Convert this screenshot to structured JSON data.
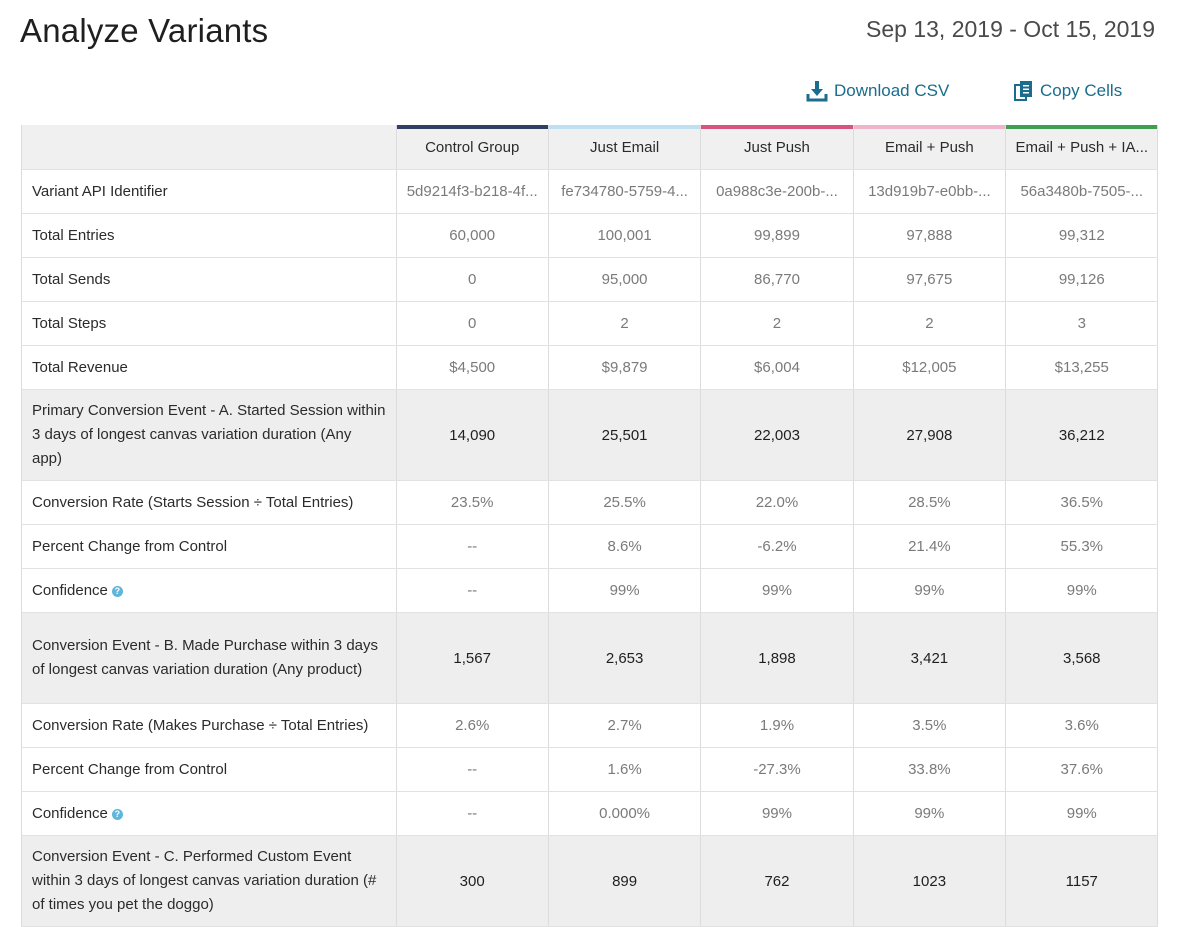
{
  "page": {
    "title": "Analyze Variants",
    "date_range": "Sep 13, 2019 - Oct 15, 2019"
  },
  "actions": {
    "download_csv": "Download CSV",
    "copy_cells": "Copy Cells"
  },
  "table": {
    "columns": [
      {
        "label": "Control Group",
        "color": "#2f3f66"
      },
      {
        "label": "Just Email",
        "color": "#bfe0f2"
      },
      {
        "label": "Just Push",
        "color": "#d9537f"
      },
      {
        "label": "Email + Push",
        "color": "#f0b3cc"
      },
      {
        "label": "Email + Push + IA...",
        "color": "#3f9e4f"
      }
    ],
    "rows": [
      {
        "label": "Variant API Identifier",
        "values": [
          "5d9214f3-b218-4f...",
          "fe734780-5759-4...",
          "0a988c3e-200b-...",
          "13d919b7-e0bb-...",
          "56a3480b-7505-..."
        ]
      },
      {
        "label": "Total Entries",
        "values": [
          "60,000",
          "100,001",
          "99,899",
          "97,888",
          "99,312"
        ]
      },
      {
        "label": "Total Sends",
        "values": [
          "0",
          "95,000",
          "86,770",
          "97,675",
          "99,126"
        ]
      },
      {
        "label": "Total Steps",
        "values": [
          "0",
          "2",
          "2",
          "2",
          "3"
        ]
      },
      {
        "label": "Total Revenue",
        "values": [
          "$4,500",
          "$9,879",
          "$6,004",
          "$12,005",
          "$13,255"
        ]
      },
      {
        "label": "Primary Conversion Event - A. Started Session within 3 days of longest canvas variation duration (Any app)",
        "values": [
          "14,090",
          "25,501",
          "22,003",
          "27,908",
          "36,212"
        ]
      },
      {
        "label": "Conversion Rate (Starts Session ÷ Total Entries)",
        "values": [
          "23.5%",
          "25.5%",
          "22.0%",
          "28.5%",
          "36.5%"
        ]
      },
      {
        "label": "Percent Change from Control",
        "values": [
          "--",
          "8.6%",
          "-6.2%",
          "21.4%",
          "55.3%"
        ]
      },
      {
        "label": "Confidence",
        "values": [
          "--",
          "99%",
          "99%",
          "99%",
          "99%"
        ]
      },
      {
        "label": "Conversion Event - B. Made Purchase within 3 days of longest canvas variation duration (Any product)",
        "values": [
          "1,567",
          "2,653",
          "1,898",
          "3,421",
          "3,568"
        ]
      },
      {
        "label": "Conversion Rate (Makes Purchase ÷ Total Entries)",
        "values": [
          "2.6%",
          "2.7%",
          "1.9%",
          "3.5%",
          "3.6%"
        ]
      },
      {
        "label": "Percent Change from Control",
        "values": [
          "--",
          "1.6%",
          "-27.3%",
          "33.8%",
          "37.6%"
        ]
      },
      {
        "label": "Confidence",
        "values": [
          "--",
          "0.000%",
          "99%",
          "99%",
          "99%"
        ]
      },
      {
        "label": "Conversion Event - C. Performed Custom Event within 3 days of longest canvas variation duration (# of times you pet the doggo)",
        "values": [
          "300",
          "899",
          "762",
          "1023",
          "1157"
        ]
      }
    ]
  }
}
